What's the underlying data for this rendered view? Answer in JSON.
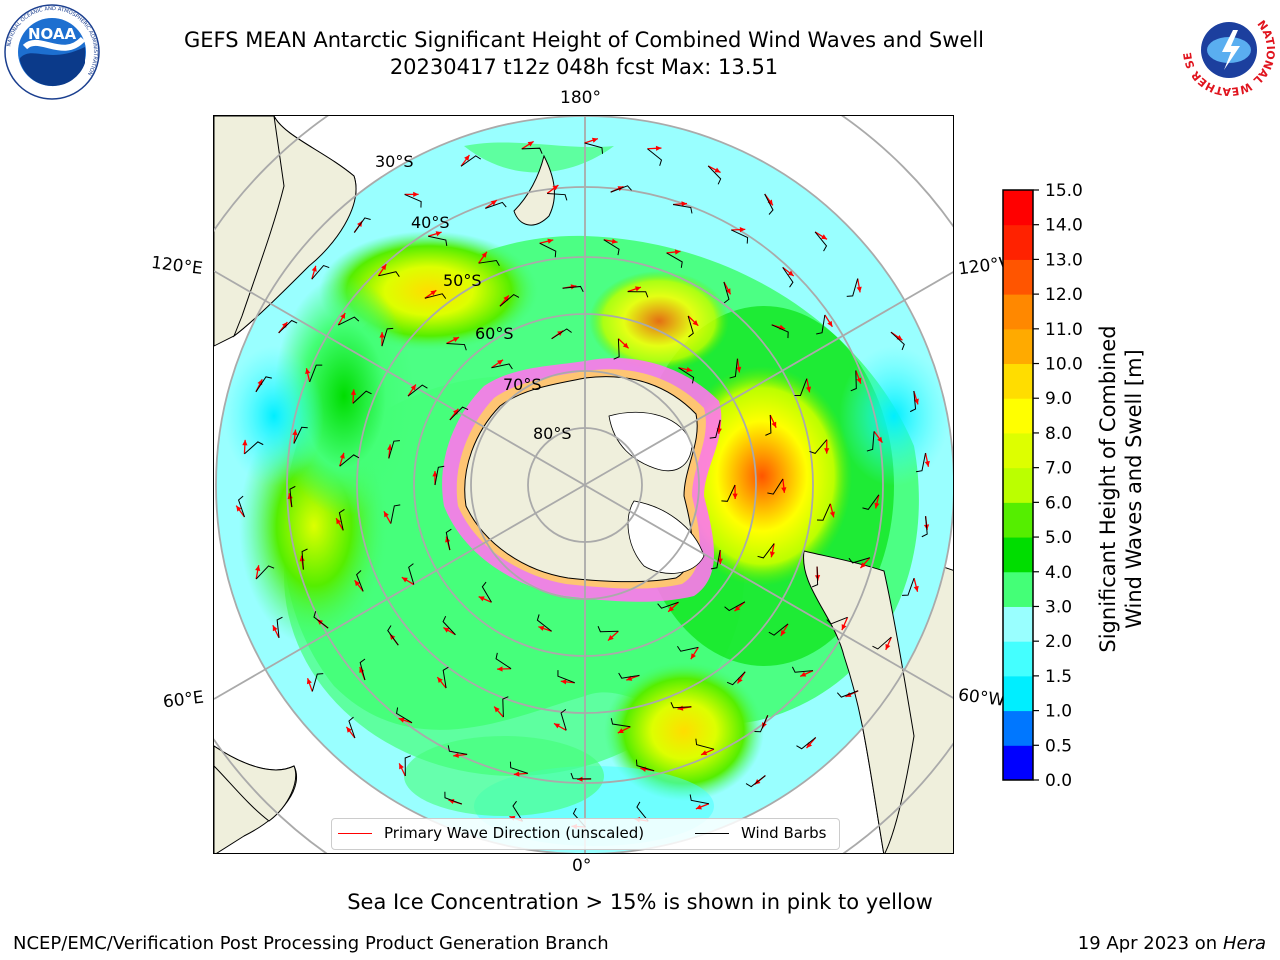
{
  "header": {
    "title_line_1": "GEFS MEAN Antarctic Significant Height of Combined Wind Waves and Swell",
    "title_line_2": "20230417 t12z 048h fcst   Max: 13.51"
  },
  "logos": {
    "left": {
      "text": "NOAA",
      "ring_text": "NATIONAL OCEANIC AND ATMOSPHERIC ADMINISTRATION",
      "bottom_text": "U.S. DEPARTMENT OF COMMERCE"
    },
    "right": {
      "ring_text": "NATIONAL WEATHER SERVICE"
    }
  },
  "map": {
    "longitude_labels": {
      "top": "180°",
      "bottom": "0°",
      "upper_left": "120°E",
      "upper_right": "120°W",
      "lower_left": "60°E",
      "lower_right": "60°W"
    },
    "latitude_labels": [
      "30°S",
      "40°S",
      "50°S",
      "60°S",
      "70°S",
      "80°S"
    ],
    "max_value": 13.51
  },
  "legend": {
    "primary_wave": {
      "label": "Primary Wave Direction (unscaled)",
      "color": "#ff0000"
    },
    "wind_barbs": {
      "label": "Wind Barbs",
      "color": "#000000"
    }
  },
  "colorbar": {
    "title_line_1": "Significant Height of Combined",
    "title_line_2": "Wind Waves and Swell [m]",
    "ticks": [
      "0.0",
      "0.5",
      "1.0",
      "1.5",
      "2.0",
      "3.0",
      "4.0",
      "5.0",
      "6.0",
      "7.0",
      "8.0",
      "9.0",
      "10.0",
      "11.0",
      "12.0",
      "13.0",
      "14.0",
      "15.0"
    ],
    "colors": [
      "#0000ff",
      "#0077ff",
      "#00eeff",
      "#44ffff",
      "#99ffff",
      "#44ff77",
      "#00dd00",
      "#55ee00",
      "#bbff00",
      "#ddff00",
      "#ffff00",
      "#ffdd00",
      "#ffaa00",
      "#ff8800",
      "#ff5500",
      "#ff2200",
      "#ff0000"
    ]
  },
  "notes": {
    "sea_ice": "Sea Ice Concentration > 15% is shown in pink to yellow"
  },
  "footer": {
    "left": "NCEP/EMC/Verification Post Processing Product Generation Branch",
    "right_prefix": "19 Apr 2023 on ",
    "right_host": "Hera"
  }
}
